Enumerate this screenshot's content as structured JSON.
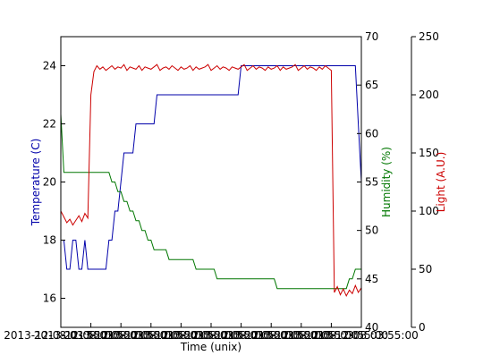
{
  "chart_data": {
    "type": "line",
    "xlabel": "Time (unix)",
    "x_tick_labels": [
      "2013-12-08 03:55:00",
      "2013-12-08 03:55:00",
      "2013-12-08 03:55:00",
      "2013-12-08 03:55:00",
      "2013-12-08 03:55:00",
      "2013-12-08 03:55:00",
      "2013-12-08 03:55:00",
      "2013-12-08 03:55:00",
      "2013-12-08 03:55:00",
      "2013-12-08 03:55:00",
      "2013-12-08 03:55:00"
    ],
    "xlim": [
      0,
      100
    ],
    "x_ticks": [
      0,
      10,
      20,
      30,
      40,
      50,
      60,
      70,
      80,
      90,
      100
    ],
    "axes": {
      "temperature": {
        "label": "Temperature (C)",
        "color": "#0000aa",
        "ylim": [
          15,
          25
        ],
        "ticks": [
          16,
          18,
          20,
          22,
          24
        ]
      },
      "humidity": {
        "label": "Humidity (%)",
        "color": "#007700",
        "ylim": [
          40,
          70
        ],
        "ticks": [
          40,
          45,
          50,
          55,
          60,
          65,
          70
        ]
      },
      "light": {
        "label": "Light (A.U.)",
        "color": "#cc0000",
        "ylim": [
          0,
          250
        ],
        "ticks": [
          0,
          50,
          100,
          150,
          200,
          250
        ]
      }
    },
    "series": [
      {
        "axis": "temperature",
        "x": [
          0,
          1,
          2,
          3,
          4,
          5,
          6,
          7,
          8,
          9,
          10,
          11,
          12,
          13,
          14,
          15,
          16,
          17,
          18,
          19,
          20,
          21,
          22,
          23,
          24,
          25,
          26,
          27,
          28,
          29,
          30,
          31,
          32,
          33,
          34,
          35,
          36,
          37,
          38,
          39,
          40,
          41,
          42,
          43,
          44,
          45,
          46,
          47,
          48,
          49,
          50,
          51,
          52,
          53,
          54,
          55,
          56,
          57,
          58,
          59,
          60,
          61,
          62,
          63,
          64,
          65,
          66,
          67,
          68,
          69,
          70,
          71,
          72,
          73,
          74,
          75,
          76,
          77,
          78,
          79,
          80,
          81,
          82,
          83,
          84,
          85,
          86,
          87,
          88,
          89,
          90,
          91,
          92,
          93,
          94,
          95,
          96,
          97,
          98,
          99,
          100
        ],
        "values": [
          18,
          18,
          17,
          17,
          18,
          18,
          17,
          17,
          18,
          17,
          17,
          17,
          17,
          17,
          17,
          17,
          18,
          18,
          19,
          19,
          20,
          21,
          21,
          21,
          21,
          22,
          22,
          22,
          22,
          22,
          22,
          22,
          23,
          23,
          23,
          23,
          23,
          23,
          23,
          23,
          23,
          23,
          23,
          23,
          23,
          23,
          23,
          23,
          23,
          23,
          23,
          23,
          23,
          23,
          23,
          23,
          23,
          23,
          23,
          23,
          24,
          24,
          24,
          24,
          24,
          24,
          24,
          24,
          24,
          24,
          24,
          24,
          24,
          24,
          24,
          24,
          24,
          24,
          24,
          24,
          24,
          24,
          24,
          24,
          24,
          24,
          24,
          24,
          24,
          24,
          24,
          24,
          24,
          24,
          24,
          24,
          24,
          24,
          24,
          22,
          20
        ]
      },
      {
        "axis": "humidity",
        "x": [
          0,
          1,
          2,
          3,
          4,
          5,
          6,
          7,
          8,
          9,
          10,
          11,
          12,
          13,
          14,
          15,
          16,
          17,
          18,
          19,
          20,
          21,
          22,
          23,
          24,
          25,
          26,
          27,
          28,
          29,
          30,
          31,
          32,
          33,
          34,
          35,
          36,
          37,
          38,
          39,
          40,
          41,
          42,
          43,
          44,
          45,
          46,
          47,
          48,
          49,
          50,
          51,
          52,
          53,
          54,
          55,
          56,
          57,
          58,
          59,
          60,
          61,
          62,
          63,
          64,
          65,
          66,
          67,
          68,
          69,
          70,
          71,
          72,
          73,
          74,
          75,
          76,
          77,
          78,
          79,
          80,
          81,
          82,
          83,
          84,
          85,
          86,
          87,
          88,
          89,
          90,
          91,
          92,
          93,
          94,
          95,
          96,
          97,
          98,
          99,
          100
        ],
        "values": [
          62,
          56,
          56,
          56,
          56,
          56,
          56,
          56,
          56,
          56,
          56,
          56,
          56,
          56,
          56,
          56,
          56,
          55,
          55,
          54,
          54,
          53,
          53,
          52,
          52,
          51,
          51,
          50,
          50,
          49,
          49,
          48,
          48,
          48,
          48,
          48,
          47,
          47,
          47,
          47,
          47,
          47,
          47,
          47,
          47,
          46,
          46,
          46,
          46,
          46,
          46,
          46,
          45,
          45,
          45,
          45,
          45,
          45,
          45,
          45,
          45,
          45,
          45,
          45,
          45,
          45,
          45,
          45,
          45,
          45,
          45,
          45,
          44,
          44,
          44,
          44,
          44,
          44,
          44,
          44,
          44,
          44,
          44,
          44,
          44,
          44,
          44,
          44,
          44,
          44,
          44,
          44,
          44,
          44,
          44,
          44,
          45,
          45,
          46,
          46,
          46
        ]
      },
      {
        "axis": "light",
        "x": [
          0,
          1,
          2,
          3,
          4,
          5,
          6,
          7,
          8,
          9,
          10,
          11,
          12,
          13,
          14,
          15,
          16,
          17,
          18,
          19,
          20,
          21,
          22,
          23,
          24,
          25,
          26,
          27,
          28,
          29,
          30,
          31,
          32,
          33,
          34,
          35,
          36,
          37,
          38,
          39,
          40,
          41,
          42,
          43,
          44,
          45,
          46,
          47,
          48,
          49,
          50,
          51,
          52,
          53,
          54,
          55,
          56,
          57,
          58,
          59,
          60,
          61,
          62,
          63,
          64,
          65,
          66,
          67,
          68,
          69,
          70,
          71,
          72,
          73,
          74,
          75,
          76,
          77,
          78,
          79,
          80,
          81,
          82,
          83,
          84,
          85,
          86,
          87,
          88,
          89,
          90,
          91,
          92,
          93,
          94,
          95,
          96,
          97,
          98,
          99,
          100
        ],
        "values": [
          100,
          95,
          90,
          93,
          88,
          92,
          96,
          91,
          98,
          94,
          200,
          220,
          225,
          222,
          224,
          221,
          223,
          225,
          222,
          224,
          223,
          226,
          221,
          224,
          223,
          222,
          225,
          221,
          224,
          223,
          222,
          224,
          226,
          221,
          223,
          224,
          222,
          225,
          223,
          221,
          224,
          222,
          223,
          225,
          221,
          224,
          222,
          223,
          224,
          226,
          221,
          223,
          225,
          222,
          224,
          223,
          221,
          224,
          223,
          222,
          224,
          226,
          221,
          223,
          225,
          222,
          224,
          223,
          221,
          224,
          222,
          223,
          225,
          221,
          224,
          222,
          223,
          224,
          226,
          221,
          223,
          225,
          222,
          224,
          223,
          221,
          224,
          222,
          225,
          223,
          221,
          30,
          35,
          28,
          33,
          27,
          32,
          29,
          36,
          30,
          34
        ]
      }
    ],
    "grid": false,
    "legend": "none"
  }
}
